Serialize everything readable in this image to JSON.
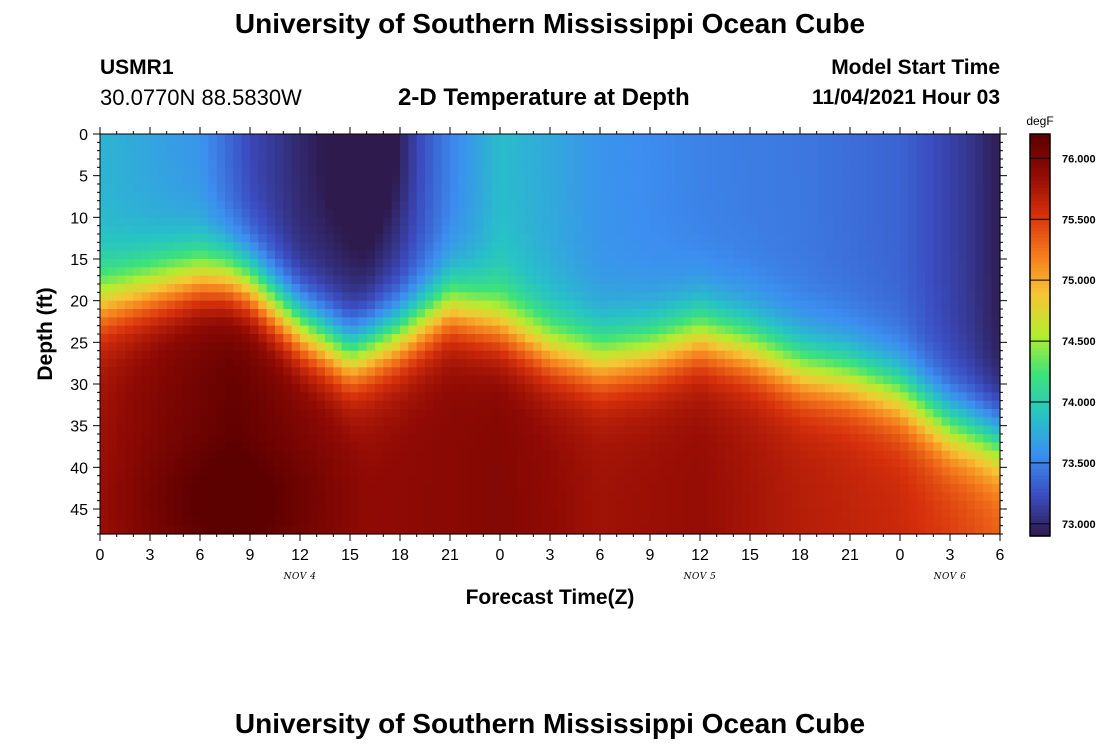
{
  "header": {
    "title": "University of Southern Mississippi Ocean Cube",
    "station_id": "USMR1",
    "coordinates": "30.0770N  88.5830W",
    "plot_title": "2-D Temperature at Depth",
    "model_start_label": "Model Start Time",
    "model_start_value": "11/04/2021 Hour 03"
  },
  "footer": {
    "title": "University of Southern Mississippi Ocean Cube"
  },
  "chart_data": {
    "type": "heatmap",
    "title": "2-D Temperature at Depth",
    "xlabel": "Forecast Time(Z)",
    "ylabel": "Depth (ft)",
    "x_ticks": [
      "0",
      "3",
      "6",
      "9",
      "12",
      "15",
      "18",
      "21",
      "0",
      "3",
      "6",
      "9",
      "12",
      "15",
      "18",
      "21",
      "0",
      "3",
      "6"
    ],
    "x_tick_hours": [
      0,
      3,
      6,
      9,
      12,
      15,
      18,
      21,
      24,
      27,
      30,
      33,
      36,
      39,
      42,
      45,
      48,
      51,
      54
    ],
    "day_labels": [
      {
        "hour": 12,
        "label": "NOV 4"
      },
      {
        "hour": 36,
        "label": "NOV 5"
      },
      {
        "hour": 51,
        "label": "NOV 6"
      }
    ],
    "xlim_hours": [
      0,
      54
    ],
    "y_ticks": [
      0,
      5,
      10,
      15,
      20,
      25,
      30,
      35,
      40,
      45
    ],
    "ylim": [
      0,
      48
    ],
    "y_inverted": true,
    "colorbar": {
      "unit": "degF",
      "ticks": [
        "76.000",
        "75.500",
        "75.000",
        "74.500",
        "74.000",
        "73.500",
        "73.000"
      ],
      "tick_values": [
        76.0,
        75.5,
        75.0,
        74.5,
        74.0,
        73.5,
        73.0
      ],
      "range": [
        72.9,
        76.2
      ],
      "colors": [
        "#2e1a4d",
        "#3b4cc0",
        "#3c8ef0",
        "#27c3c6",
        "#3ce27c",
        "#b4ed2f",
        "#f6c634",
        "#f57a1c",
        "#d6300c",
        "#900a04",
        "#5c0000"
      ]
    },
    "thermocline_depth_ft": {
      "hours": [
        0,
        3,
        6,
        7.5,
        9,
        12,
        15,
        18,
        21,
        24,
        27,
        30,
        33,
        36,
        39,
        42,
        45,
        48,
        51,
        54
      ],
      "depth": [
        20,
        18.5,
        17,
        17,
        18,
        23,
        26.5,
        24,
        20.5,
        22.5,
        25.5,
        27,
        26,
        24,
        25.5,
        28,
        29,
        31,
        35,
        37
      ]
    },
    "surface_temp_degF": {
      "hours": [
        0,
        6,
        9,
        12,
        15,
        16,
        18,
        21,
        24,
        30,
        36,
        42,
        48,
        52,
        54
      ],
      "temp": [
        73.8,
        73.6,
        73.2,
        73.0,
        72.95,
        72.92,
        73.1,
        73.5,
        73.85,
        73.6,
        73.5,
        73.45,
        73.35,
        73.1,
        72.92
      ]
    },
    "bottom_temp_degF": {
      "hours": [
        0,
        4,
        8,
        12,
        16,
        20,
        24,
        30,
        36,
        42,
        48,
        52,
        54
      ],
      "temp": [
        75.8,
        76.0,
        76.15,
        76.0,
        75.85,
        75.9,
        75.95,
        75.8,
        75.85,
        75.7,
        75.6,
        75.45,
        75.35
      ]
    },
    "warm_core": {
      "hour": 8,
      "depth": 44,
      "temp": 76.2
    }
  }
}
